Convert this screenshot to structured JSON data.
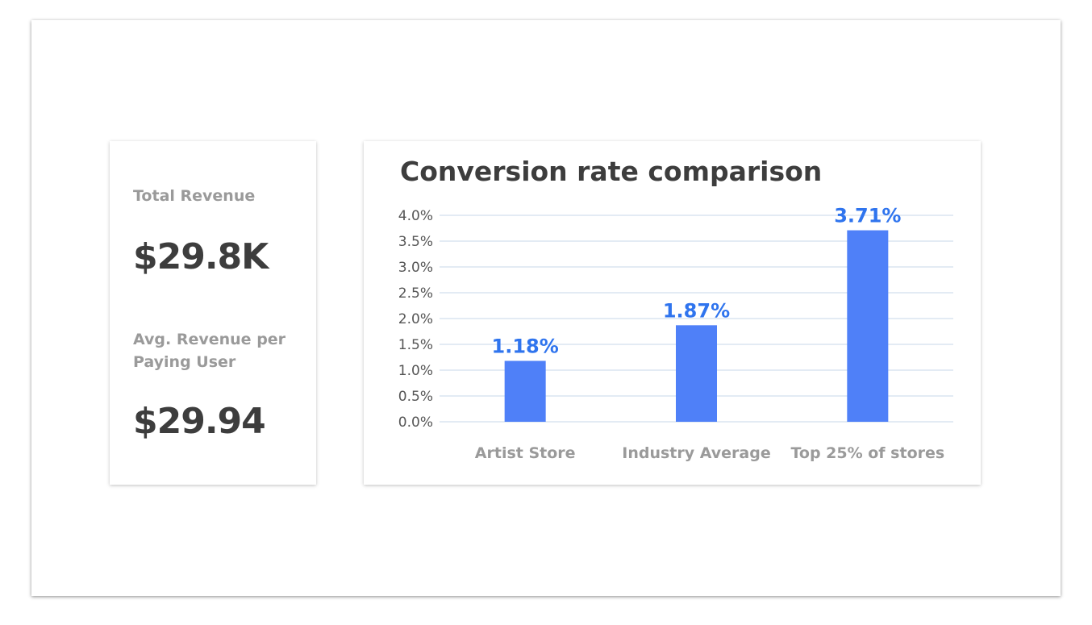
{
  "metrics": {
    "total_revenue_label": "Total Revenue",
    "total_revenue_value": "$29.8K",
    "arppu_label": "Avg. Revenue per Paying User",
    "arppu_value": "$29.94"
  },
  "colors": {
    "bar": "#4f80f8",
    "value_label": "#2f74ee",
    "grid": "#e3ebf4",
    "axis_text": "#555555",
    "category_text": "#9a9a9a"
  },
  "chart_data": {
    "type": "bar",
    "title": "Conversion rate comparison",
    "categories": [
      "Artist Store",
      "Industry Average",
      "Top 25% of stores"
    ],
    "values": [
      1.18,
      1.87,
      3.71
    ],
    "value_labels": [
      "1.18%",
      "1.87%",
      "3.71%"
    ],
    "y_ticks": [
      "0.0%",
      "0.5%",
      "1.0%",
      "1.5%",
      "2.0%",
      "2.5%",
      "3.0%",
      "3.5%",
      "4.0%"
    ],
    "ylim": [
      0,
      4
    ],
    "grid": true,
    "xlabel": "",
    "ylabel": ""
  }
}
